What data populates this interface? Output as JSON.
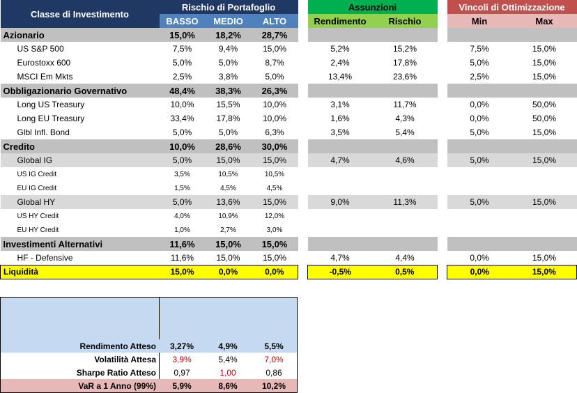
{
  "header": {
    "asset_class": "Classe di Investimento",
    "risk_title": "Rischio di Portafoglio",
    "risk_levels": [
      "BASSO",
      "MEDIO",
      "ALTO"
    ],
    "assumptions_title": "Assunzioni",
    "assumptions_cols": [
      "Rendimento",
      "Rischio"
    ],
    "constraints_title": "Vincoli di Ottimizzazione",
    "constraints_cols": [
      "Min",
      "Max"
    ]
  },
  "rows": [
    {
      "name": "Azionario",
      "type": "section",
      "basso": "15,0%",
      "medio": "18,2%",
      "alto": "28,7%",
      "rend": "",
      "risc": "",
      "min": "",
      "max": ""
    },
    {
      "name": "US S&P 500",
      "type": "item",
      "basso": "7,5%",
      "medio": "9,4%",
      "alto": "15,0%",
      "rend": "5,2%",
      "risc": "15,2%",
      "min": "7,5%",
      "max": "15,0%"
    },
    {
      "name": "Eurostoxx 600",
      "type": "item",
      "basso": "5,0%",
      "medio": "5,0%",
      "alto": "8,7%",
      "rend": "2,4%",
      "risc": "17,8%",
      "min": "5,0%",
      "max": "15,0%"
    },
    {
      "name": "MSCI Em Mkts",
      "type": "item",
      "basso": "2,5%",
      "medio": "3,8%",
      "alto": "5,0%",
      "rend": "13,4%",
      "risc": "23,6%",
      "min": "2,5%",
      "max": "15,0%"
    },
    {
      "name": "Obbligazionario Governativo",
      "type": "section",
      "basso": "48,4%",
      "medio": "38,3%",
      "alto": "26,3%",
      "rend": "",
      "risc": "",
      "min": "",
      "max": ""
    },
    {
      "name": "Long US Treasury",
      "type": "item",
      "basso": "10,0%",
      "medio": "15,5%",
      "alto": "10,0%",
      "rend": "3,1%",
      "risc": "11,7%",
      "min": "0,0%",
      "max": "50,0%"
    },
    {
      "name": "Long EU Treasury",
      "type": "item",
      "basso": "33,4%",
      "medio": "17,8%",
      "alto": "10,0%",
      "rend": "1,6%",
      "risc": "4,3%",
      "min": "0,0%",
      "max": "50,0%"
    },
    {
      "name": "Glbl Infl. Bond",
      "type": "item",
      "basso": "5,0%",
      "medio": "5,0%",
      "alto": "6,3%",
      "rend": "3,5%",
      "risc": "5,4%",
      "min": "5,0%",
      "max": "15,0%"
    },
    {
      "name": "Credito",
      "type": "section",
      "basso": "10,0%",
      "medio": "28,6%",
      "alto": "30,0%",
      "rend": "",
      "risc": "",
      "min": "",
      "max": ""
    },
    {
      "name": "Global IG",
      "type": "sub",
      "basso": "5,0%",
      "medio": "15,0%",
      "alto": "15,0%",
      "rend": "4,7%",
      "risc": "4,6%",
      "min": "5,0%",
      "max": "15,0%"
    },
    {
      "name": "US IG Credit",
      "type": "small",
      "basso": "3,5%",
      "medio": "10,5%",
      "alto": "10,5%",
      "rend": "",
      "risc": "",
      "min": "",
      "max": ""
    },
    {
      "name": "EU IG Credit",
      "type": "small",
      "basso": "1,5%",
      "medio": "4,5%",
      "alto": "4,5%",
      "rend": "",
      "risc": "",
      "min": "",
      "max": ""
    },
    {
      "name": "Global HY",
      "type": "sub",
      "basso": "5,0%",
      "medio": "13,6%",
      "alto": "15,0%",
      "rend": "9,0%",
      "risc": "11,3%",
      "min": "5,0%",
      "max": "15,0%"
    },
    {
      "name": "US HY Credit",
      "type": "small",
      "basso": "4,0%",
      "medio": "10,9%",
      "alto": "12,0%",
      "rend": "",
      "risc": "",
      "min": "",
      "max": ""
    },
    {
      "name": "EU HY Credit",
      "type": "small",
      "basso": "1,0%",
      "medio": "2,7%",
      "alto": "3,0%",
      "rend": "",
      "risc": "",
      "min": "",
      "max": ""
    },
    {
      "name": "Investimenti Alternativi",
      "type": "section",
      "basso": "11,6%",
      "medio": "15,0%",
      "alto": "15,0%",
      "rend": "",
      "risc": "",
      "min": "",
      "max": ""
    },
    {
      "name": "HF - Defensive",
      "type": "item",
      "basso": "11,6%",
      "medio": "15,0%",
      "alto": "15,0%",
      "rend": "4,7%",
      "risc": "4,4%",
      "min": "0,0%",
      "max": "15,0%"
    },
    {
      "name": "Liquidità",
      "type": "liq",
      "basso": "15,0%",
      "medio": "0,0%",
      "alto": "0,0%",
      "rend": "-0,5%",
      "risc": "0,5%",
      "min": "0,0%",
      "max": "15,0%"
    }
  ],
  "summary": [
    {
      "label": "Rendimento Atteso",
      "basso": "3,27%",
      "medio": "4,9%",
      "alto": "5,5%",
      "style": "bold",
      "red": []
    },
    {
      "label": "Volatilità Attesa",
      "basso": "3,9%",
      "medio": "5,4%",
      "alto": "7,0%",
      "style": "normal",
      "red": [
        "basso",
        "alto"
      ]
    },
    {
      "label": "Sharpe Ratio Atteso",
      "basso": "0,97",
      "medio": "1,00",
      "alto": "0,86",
      "style": "normal",
      "red": [
        "medio"
      ]
    },
    {
      "label": "VaR a 1 Anno (99%)",
      "basso": "5,9%",
      "medio": "8,6%",
      "alto": "10,2%",
      "style": "var",
      "red": []
    }
  ],
  "colors": {
    "header_dark": "#1f3864",
    "header_blue": "#4f81bd",
    "assumptions_green": "#00b050",
    "assumptions_light": "#92d050",
    "constraints_red": "#c0504d",
    "constraints_pink": "#e6b8b7",
    "liquidity_yellow": "#ffff00",
    "section_gray": "#c0c0c0",
    "summary_blue": "#c5d9f1",
    "negative_red": "#c00000"
  }
}
